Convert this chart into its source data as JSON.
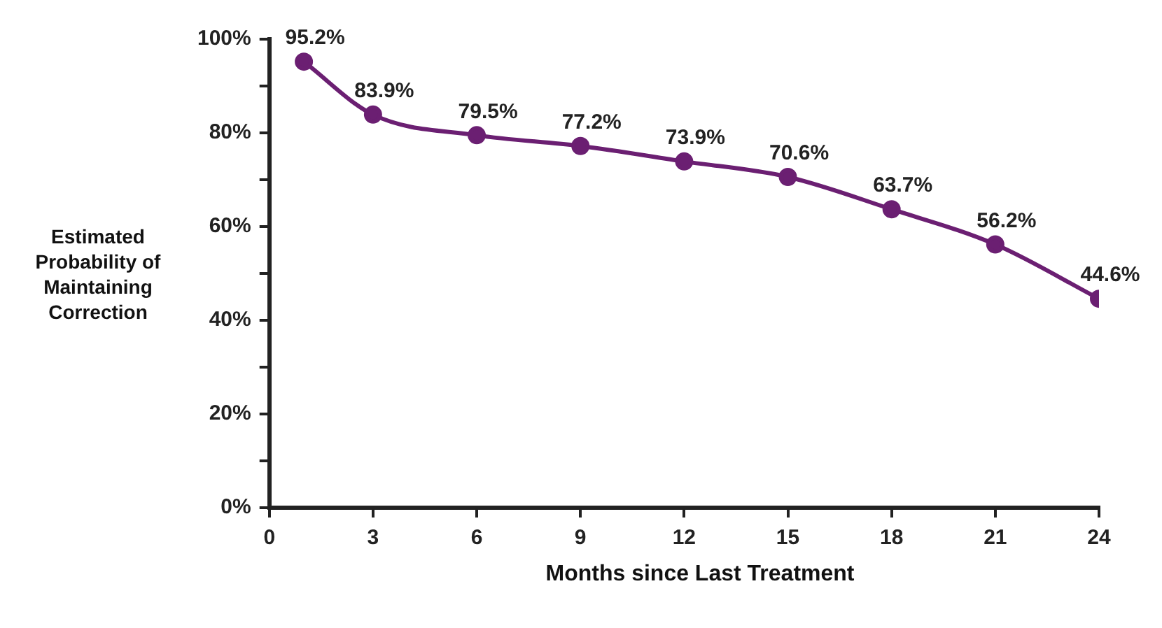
{
  "chart_data": {
    "type": "line",
    "xlabel": "Months since Last Treatment",
    "ylabel": "Estimated Probability of Maintaining Correction",
    "x": [
      1,
      3,
      6,
      9,
      12,
      15,
      18,
      21,
      24
    ],
    "series": [
      {
        "color": "#6b1f72",
        "values": [
          95.2,
          83.9,
          79.5,
          77.2,
          73.9,
          70.6,
          63.7,
          56.2,
          44.6
        ],
        "value_labels": [
          "95.2%",
          "83.9%",
          "79.5%",
          "77.2%",
          "73.9%",
          "70.6%",
          "63.7%",
          "56.2%",
          "44.6%"
        ]
      }
    ],
    "xlim": [
      0,
      24
    ],
    "xticks": [
      0,
      3,
      6,
      9,
      12,
      15,
      18,
      21,
      24
    ],
    "ylim": [
      0,
      100
    ],
    "yticks": [
      {
        "value": 0,
        "label": "0%"
      },
      {
        "value": 10,
        "label": null
      },
      {
        "value": 20,
        "label": "20%"
      },
      {
        "value": 30,
        "label": null
      },
      {
        "value": 40,
        "label": "40%"
      },
      {
        "value": 50,
        "label": null
      },
      {
        "value": 60,
        "label": "60%"
      },
      {
        "value": 70,
        "label": null
      },
      {
        "value": 80,
        "label": "80%"
      },
      {
        "value": 90,
        "label": null
      },
      {
        "value": 100,
        "label": "100%"
      }
    ],
    "grid": false,
    "legend": false,
    "marker": "circle",
    "line_style": "solid"
  }
}
